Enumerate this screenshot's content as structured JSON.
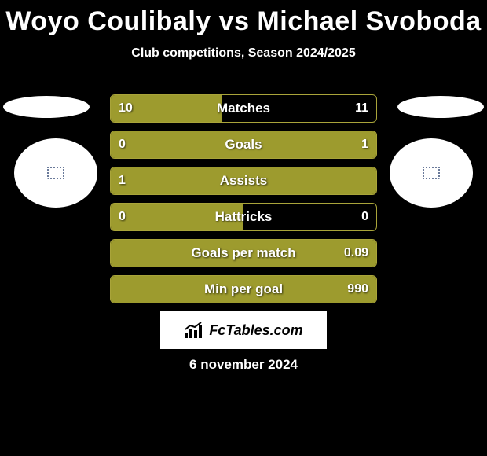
{
  "title": "Woyo Coulibaly vs Michael Svoboda",
  "subtitle": "Club competitions, Season 2024/2025",
  "colors": {
    "background": "#000000",
    "bar_fill": "#9d9b2e",
    "bar_border": "#a9a43a",
    "text": "#ffffff",
    "logo_bg": "#ffffff",
    "logo_text": "#000000",
    "badge_border": "#6a7a9a"
  },
  "stats": [
    {
      "label": "Matches",
      "left_val": "10",
      "right_val": "11",
      "left_pct": 42,
      "right_pct": 0,
      "fill_side": "left"
    },
    {
      "label": "Goals",
      "left_val": "0",
      "right_val": "1",
      "left_pct": 20,
      "right_pct": 80,
      "fill_side": "split"
    },
    {
      "label": "Assists",
      "left_val": "1",
      "right_val": "",
      "left_pct": 100,
      "right_pct": 0,
      "fill_side": "left"
    },
    {
      "label": "Hattricks",
      "left_val": "0",
      "right_val": "0",
      "left_pct": 50,
      "right_pct": 0,
      "fill_side": "left"
    },
    {
      "label": "Goals per match",
      "left_val": "",
      "right_val": "0.09",
      "left_pct": 0,
      "right_pct": 100,
      "fill_side": "right"
    },
    {
      "label": "Min per goal",
      "left_val": "",
      "right_val": "990",
      "left_pct": 0,
      "right_pct": 100,
      "fill_side": "right"
    }
  ],
  "logo_text": "FcTables.com",
  "date": "6 november 2024"
}
